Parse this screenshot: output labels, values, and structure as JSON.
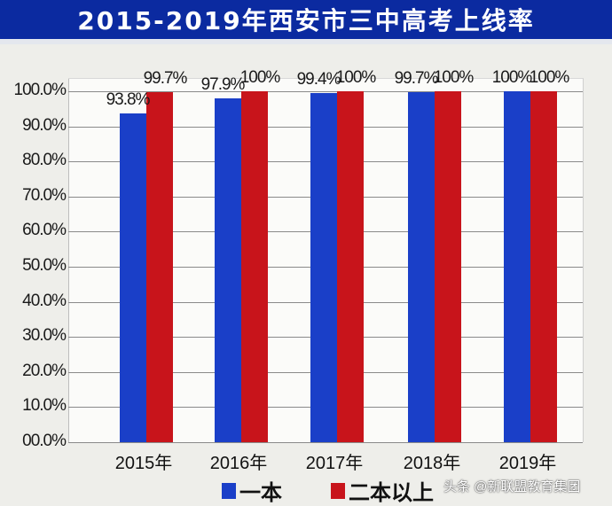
{
  "title": "2015-2019年西安市三中高考上线率",
  "colors": {
    "title_bg": "#0b2aa0",
    "series_1": "#1a3fc8",
    "series_2": "#c8141b"
  },
  "watermark": "头条 @新联盟教育集团",
  "legend": [
    {
      "label": "一本",
      "color": "#1a3fc8"
    },
    {
      "label": "二本以上",
      "color": "#c8141b"
    }
  ],
  "y_ticks": [
    "100.0%",
    "90.0%",
    "80.0%",
    "70.0%",
    "60.0%",
    "50.0%",
    "40.0%",
    "30.0%",
    "20.0%",
    "10.0%",
    "00.0%"
  ],
  "chart_data": {
    "type": "bar",
    "title": "2015-2019年西安市三中高考上线率",
    "categories": [
      "2015年",
      "2016年",
      "2017年",
      "2018年",
      "2019年"
    ],
    "series": [
      {
        "name": "一本",
        "values": [
          93.8,
          97.9,
          99.4,
          99.7,
          100
        ],
        "labels": [
          "93.8%",
          "97.9%",
          "99.4%",
          "99.7%",
          "100%"
        ]
      },
      {
        "name": "二本以上",
        "values": [
          99.7,
          100,
          100,
          100,
          100
        ],
        "labels": [
          "99.7%",
          "100%",
          "100%",
          "100%",
          "100%"
        ]
      }
    ],
    "xlabel": "",
    "ylabel": "",
    "ylim": [
      0,
      100
    ],
    "ytick_step": 10,
    "grid": true,
    "legend_position": "bottom"
  }
}
